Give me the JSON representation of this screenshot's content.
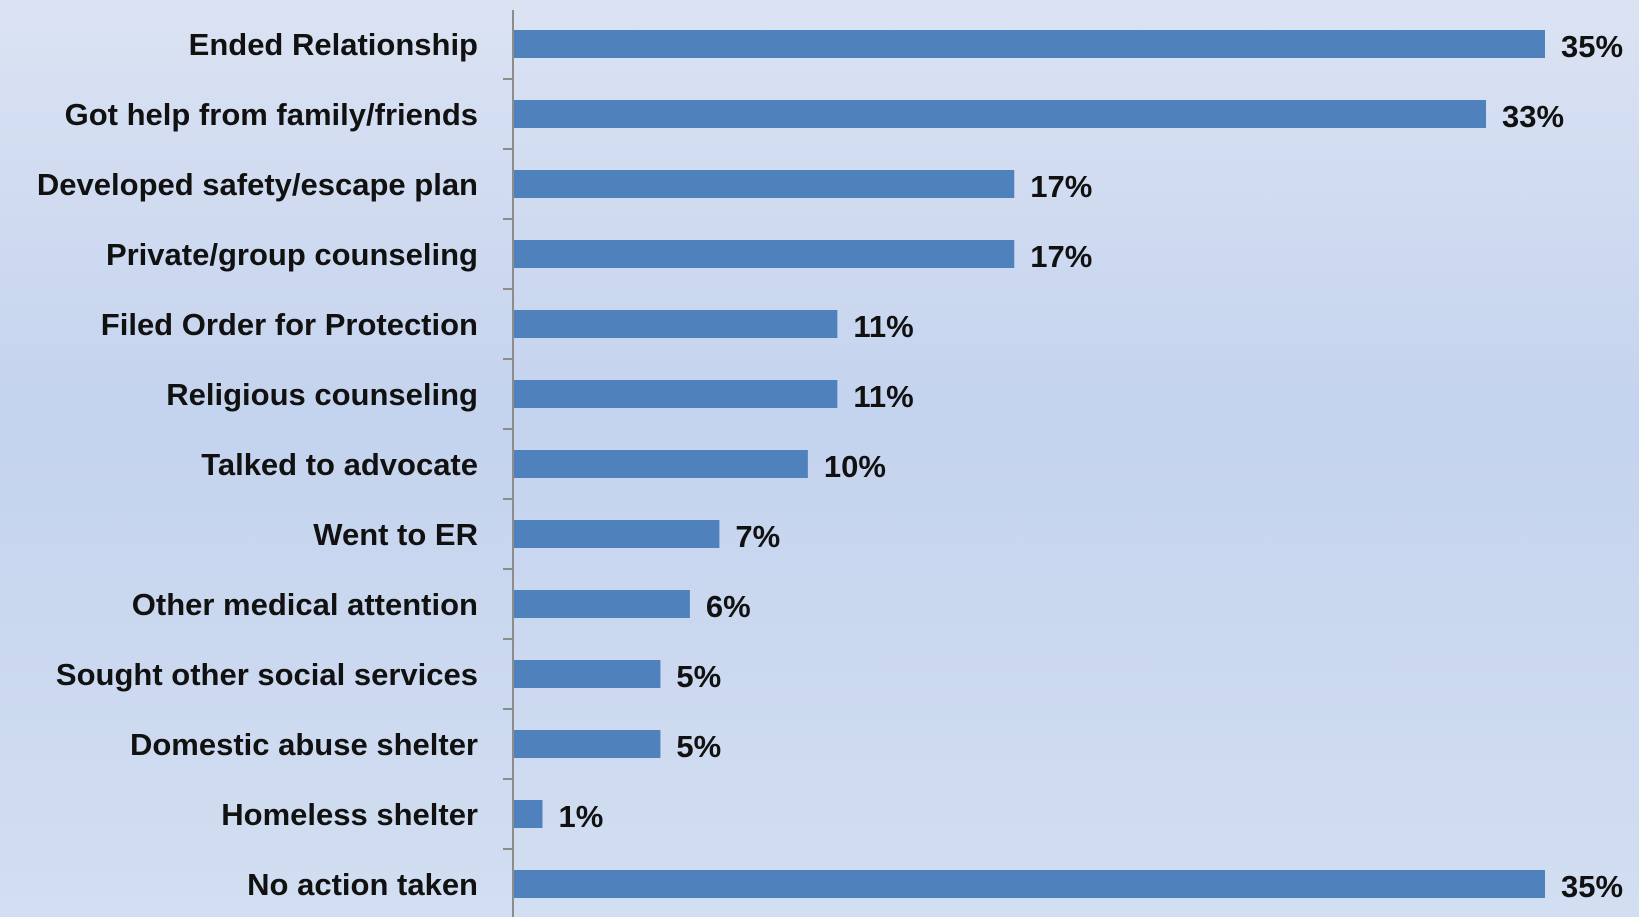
{
  "chart_data": {
    "type": "bar",
    "orientation": "horizontal",
    "categories": [
      "Ended Relationship",
      "Got help from family/friends",
      "Developed safety/escape plan",
      "Private/group counseling",
      "Filed Order for Protection",
      "Religious counseling",
      "Talked to advocate",
      "Went to ER",
      "Other medical attention",
      "Sought other social services",
      "Domestic abuse shelter",
      "Homeless shelter",
      "No action taken"
    ],
    "values": [
      35,
      33,
      17,
      17,
      11,
      11,
      10,
      7,
      6,
      5,
      5,
      1,
      35
    ],
    "value_labels": [
      "35%",
      "33%",
      "17%",
      "17%",
      "11%",
      "11%",
      "10%",
      "7%",
      "6%",
      "5%",
      "5%",
      "1%",
      "35%"
    ],
    "title": "",
    "xlabel": "",
    "ylabel": "",
    "xlim": [
      0,
      35
    ],
    "grid": false,
    "legend": "none",
    "colors": {
      "bar": "#4f81bd",
      "axis": "#8c8c8c",
      "text": "#111111"
    }
  }
}
